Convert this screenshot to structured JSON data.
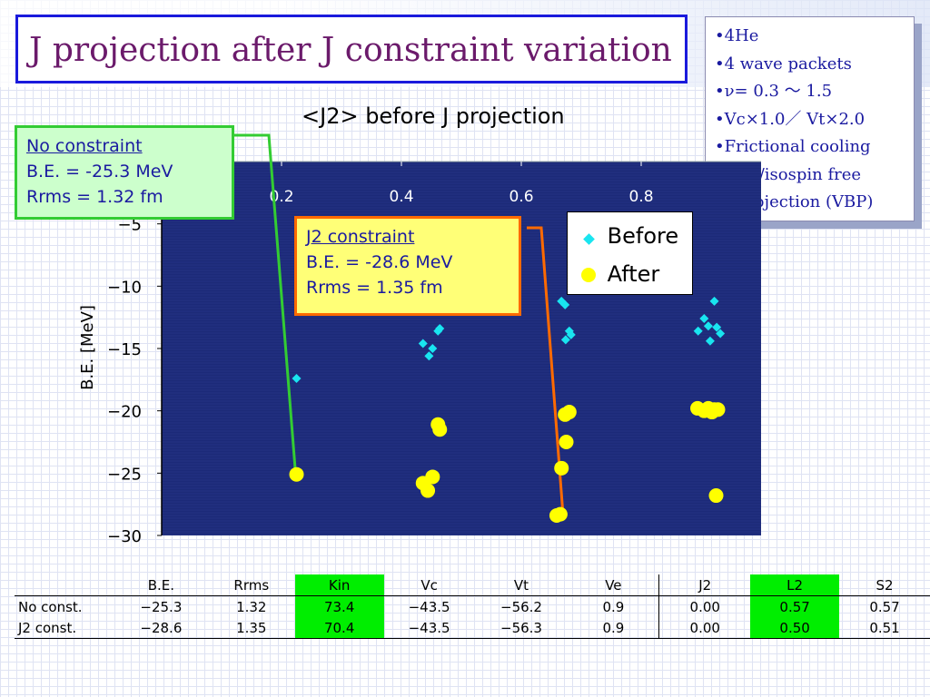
{
  "slide": {
    "title": "J projection after J constraint variation",
    "info_lines": [
      "•4He",
      "•4 wave packets",
      "•ν= 0.3 ～ 1.5",
      "•Vc×1.0／ Vt×2.0",
      "•Frictional cooling",
      "•spin/isospin free",
      "•J projection (VBP)"
    ]
  },
  "callouts": {
    "no_constraint": {
      "head": "No constraint",
      "line1": "B.E. = -25.3 MeV",
      "line2": "Rrms = 1.32 fm"
    },
    "j2_constraint": {
      "head": "J2 constraint",
      "line1": "B.E. = -28.6 MeV",
      "line2": "Rrms = 1.35 fm"
    }
  },
  "colors": {
    "plot_background": "#1c2a78",
    "before_marker": "#19e5f0",
    "after_marker": "#ffff00",
    "green_callout_line": "#33cc33",
    "orange_callout_line": "#ff6a00"
  },
  "chart_data": {
    "type": "scatter",
    "title": "<J2> before J projection",
    "xlabel": "",
    "ylabel": "B.E. [MeV]",
    "xlim": [
      0.0,
      1.0
    ],
    "ylim": [
      -30,
      0
    ],
    "x_ticks": [
      "0.2",
      "0.4",
      "0.6",
      "0.8"
    ],
    "y_ticks": [
      "−5",
      "−10",
      "−15",
      "−20",
      "−25",
      "−30"
    ],
    "x_axis_position": "top",
    "legend_position": "top-right",
    "series": [
      {
        "name": "Before",
        "marker": "diamond",
        "points": [
          [
            0.225,
            -17.4
          ],
          [
            0.436,
            -14.6
          ],
          [
            0.446,
            -15.6
          ],
          [
            0.452,
            -15.0
          ],
          [
            0.461,
            -13.6
          ],
          [
            0.464,
            -13.4
          ],
          [
            0.667,
            -11.2
          ],
          [
            0.673,
            -11.5
          ],
          [
            0.674,
            -14.3
          ],
          [
            0.68,
            -13.6
          ],
          [
            0.683,
            -13.9
          ],
          [
            0.895,
            -13.6
          ],
          [
            0.905,
            -12.6
          ],
          [
            0.912,
            -13.2
          ],
          [
            0.915,
            -14.4
          ],
          [
            0.922,
            -11.2
          ],
          [
            0.926,
            -13.3
          ],
          [
            0.932,
            -13.8
          ]
        ]
      },
      {
        "name": "After",
        "marker": "circle",
        "points": [
          [
            0.225,
            -25.1
          ],
          [
            0.436,
            -25.8
          ],
          [
            0.444,
            -26.4
          ],
          [
            0.452,
            -25.3
          ],
          [
            0.461,
            -21.1
          ],
          [
            0.464,
            -21.5
          ],
          [
            0.659,
            -28.4
          ],
          [
            0.665,
            -28.3
          ],
          [
            0.667,
            -24.6
          ],
          [
            0.673,
            -20.3
          ],
          [
            0.675,
            -22.5
          ],
          [
            0.68,
            -20.1
          ],
          [
            0.894,
            -19.8
          ],
          [
            0.905,
            -20.0
          ],
          [
            0.912,
            -19.8
          ],
          [
            0.918,
            -20.1
          ],
          [
            0.922,
            -19.9
          ],
          [
            0.925,
            -26.8
          ],
          [
            0.928,
            -19.9
          ]
        ]
      }
    ]
  },
  "table": {
    "headers": [
      "",
      "B.E.",
      "Rrms",
      "Kin",
      "Vc",
      "Vt",
      "Ve",
      "J2",
      "L2",
      "S2"
    ],
    "rows": [
      [
        "No const.",
        "−25.3",
        "1.32",
        "73.4",
        "−43.5",
        "−56.2",
        "0.9",
        "0.00",
        "0.57",
        "0.57"
      ],
      [
        "J2 const.",
        "−28.6",
        "1.35",
        "70.4",
        "−43.5",
        "−56.3",
        "0.9",
        "0.00",
        "0.50",
        "0.51"
      ]
    ]
  }
}
